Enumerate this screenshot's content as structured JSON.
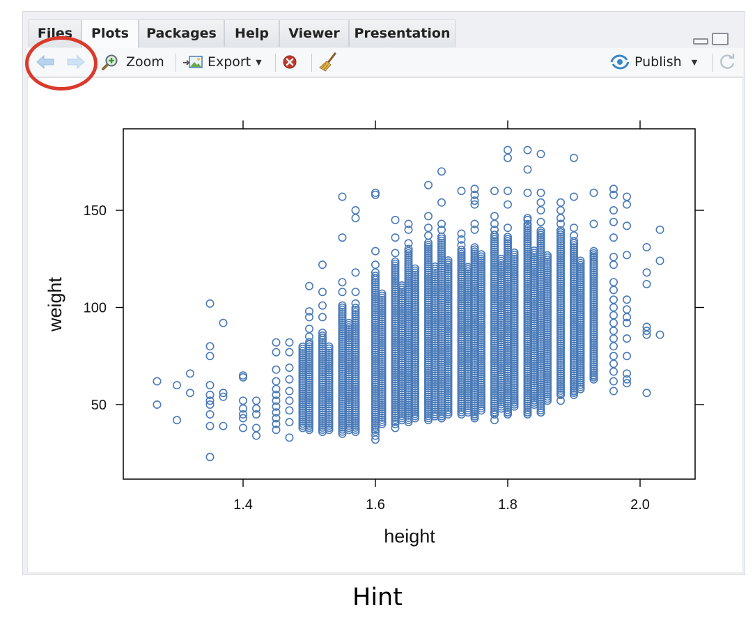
{
  "tabs": [
    {
      "label": "Files",
      "active": false
    },
    {
      "label": "Plots",
      "active": true
    },
    {
      "label": "Packages",
      "active": false
    },
    {
      "label": "Help",
      "active": false
    },
    {
      "label": "Viewer",
      "active": false
    },
    {
      "label": "Presentation",
      "active": false
    }
  ],
  "toolbar": {
    "back_icon": "left-arrow-icon",
    "forward_icon": "right-arrow-icon",
    "zoom_label": "Zoom",
    "export_label": "Export",
    "remove_icon": "remove-plot-icon",
    "clear_icon": "broom-icon",
    "publish_label": "Publish",
    "refresh_icon": "refresh-icon"
  },
  "colors": {
    "point": "#4a7ab7",
    "annotation": "#d93a2b",
    "tab_bg": "#e6e9ed"
  },
  "caption": "Hint",
  "chart_data": {
    "type": "scatter",
    "xlabel": "height",
    "ylabel": "weight",
    "xlim": [
      1.22,
      2.08
    ],
    "ylim": [
      20,
      190
    ],
    "xticks": [
      1.4,
      1.6,
      1.8,
      2.0
    ],
    "xtick_labels": [
      "1.4",
      "1.6",
      "1.8",
      "2.0"
    ],
    "yticks": [
      50,
      100,
      150
    ],
    "ytick_labels": [
      "50",
      "100",
      "150"
    ],
    "grid": false,
    "marker": "open-circle",
    "points": [
      [
        1.27,
        62
      ],
      [
        1.27,
        50
      ],
      [
        1.3,
        60
      ],
      [
        1.3,
        42
      ],
      [
        1.32,
        66
      ],
      [
        1.32,
        56
      ],
      [
        1.35,
        102
      ],
      [
        1.35,
        80
      ],
      [
        1.35,
        75
      ],
      [
        1.35,
        60
      ],
      [
        1.35,
        55
      ],
      [
        1.35,
        52
      ],
      [
        1.35,
        50
      ],
      [
        1.35,
        45
      ],
      [
        1.35,
        39
      ],
      [
        1.35,
        23
      ],
      [
        1.37,
        92
      ],
      [
        1.37,
        56
      ],
      [
        1.37,
        54
      ],
      [
        1.37,
        39
      ],
      [
        1.4,
        65
      ],
      [
        1.4,
        64
      ],
      [
        1.4,
        52
      ],
      [
        1.4,
        48
      ],
      [
        1.4,
        45
      ],
      [
        1.4,
        43
      ],
      [
        1.4,
        38
      ],
      [
        1.42,
        52
      ],
      [
        1.42,
        48
      ],
      [
        1.42,
        45
      ],
      [
        1.42,
        38
      ],
      [
        1.42,
        34
      ],
      [
        1.45,
        82
      ],
      [
        1.45,
        77
      ],
      [
        1.45,
        68
      ],
      [
        1.45,
        62
      ],
      [
        1.45,
        58
      ],
      [
        1.45,
        55
      ],
      [
        1.45,
        52
      ],
      [
        1.45,
        49
      ],
      [
        1.45,
        46
      ],
      [
        1.45,
        43
      ],
      [
        1.45,
        40
      ],
      [
        1.45,
        37
      ],
      [
        1.47,
        82
      ],
      [
        1.47,
        77
      ],
      [
        1.47,
        69
      ],
      [
        1.47,
        63
      ],
      [
        1.47,
        57
      ],
      [
        1.47,
        52
      ],
      [
        1.47,
        47
      ],
      [
        1.47,
        41
      ],
      [
        1.47,
        33
      ],
      [
        1.5,
        111
      ],
      [
        1.5,
        98
      ],
      [
        1.5,
        95
      ],
      [
        1.5,
        89
      ],
      [
        1.5,
        85
      ],
      [
        1.52,
        122
      ],
      [
        1.52,
        108
      ],
      [
        1.52,
        101
      ],
      [
        1.52,
        95
      ],
      [
        1.52,
        87
      ],
      [
        1.55,
        157
      ],
      [
        1.55,
        136
      ],
      [
        1.55,
        113
      ],
      [
        1.55,
        108
      ],
      [
        1.55,
        101
      ],
      [
        1.57,
        150
      ],
      [
        1.57,
        146
      ],
      [
        1.57,
        118
      ],
      [
        1.57,
        108
      ],
      [
        1.57,
        102
      ],
      [
        1.6,
        159
      ],
      [
        1.6,
        158
      ],
      [
        1.6,
        129
      ],
      [
        1.6,
        122
      ],
      [
        1.6,
        118
      ],
      [
        1.6,
        34
      ],
      [
        1.6,
        32
      ],
      [
        1.63,
        145
      ],
      [
        1.63,
        136
      ],
      [
        1.63,
        128
      ],
      [
        1.63,
        38
      ],
      [
        1.65,
        143
      ],
      [
        1.65,
        140
      ],
      [
        1.65,
        133
      ],
      [
        1.68,
        163
      ],
      [
        1.68,
        147
      ],
      [
        1.68,
        141
      ],
      [
        1.68,
        137
      ],
      [
        1.7,
        170
      ],
      [
        1.7,
        154
      ],
      [
        1.7,
        143
      ],
      [
        1.7,
        140
      ],
      [
        1.7,
        43
      ],
      [
        1.73,
        160
      ],
      [
        1.73,
        138
      ],
      [
        1.73,
        135
      ],
      [
        1.73,
        132
      ],
      [
        1.75,
        161
      ],
      [
        1.75,
        158
      ],
      [
        1.75,
        155
      ],
      [
        1.75,
        153
      ],
      [
        1.75,
        143
      ],
      [
        1.75,
        140
      ],
      [
        1.75,
        43
      ],
      [
        1.78,
        160
      ],
      [
        1.78,
        147
      ],
      [
        1.78,
        143
      ],
      [
        1.78,
        140
      ],
      [
        1.78,
        45
      ],
      [
        1.78,
        42
      ],
      [
        1.8,
        181
      ],
      [
        1.8,
        177
      ],
      [
        1.8,
        160
      ],
      [
        1.8,
        153
      ],
      [
        1.8,
        141
      ],
      [
        1.8,
        46
      ],
      [
        1.83,
        181
      ],
      [
        1.83,
        171
      ],
      [
        1.83,
        159
      ],
      [
        1.83,
        146
      ],
      [
        1.83,
        145
      ],
      [
        1.83,
        46
      ],
      [
        1.85,
        179
      ],
      [
        1.85,
        159
      ],
      [
        1.85,
        154
      ],
      [
        1.85,
        150
      ],
      [
        1.85,
        144
      ],
      [
        1.85,
        46
      ],
      [
        1.88,
        154
      ],
      [
        1.88,
        150
      ],
      [
        1.88,
        146
      ],
      [
        1.88,
        143
      ],
      [
        1.88,
        55
      ],
      [
        1.88,
        52
      ],
      [
        1.9,
        177
      ],
      [
        1.9,
        157
      ],
      [
        1.9,
        141
      ],
      [
        1.9,
        137
      ],
      [
        1.9,
        57
      ],
      [
        1.93,
        159
      ],
      [
        1.93,
        143
      ],
      [
        1.93,
        129
      ],
      [
        1.93,
        126
      ],
      [
        1.93,
        65
      ],
      [
        1.96,
        161
      ],
      [
        1.96,
        158
      ],
      [
        1.96,
        150
      ],
      [
        1.96,
        144
      ],
      [
        1.96,
        136
      ],
      [
        1.96,
        126
      ],
      [
        1.96,
        122
      ],
      [
        1.96,
        113
      ],
      [
        1.96,
        109
      ],
      [
        1.96,
        104
      ],
      [
        1.96,
        100
      ],
      [
        1.96,
        96
      ],
      [
        1.96,
        92
      ],
      [
        1.96,
        88
      ],
      [
        1.96,
        84
      ],
      [
        1.96,
        80
      ],
      [
        1.96,
        75
      ],
      [
        1.96,
        71
      ],
      [
        1.96,
        67
      ],
      [
        1.96,
        62
      ],
      [
        1.96,
        57
      ],
      [
        1.98,
        157
      ],
      [
        1.98,
        153
      ],
      [
        1.98,
        142
      ],
      [
        1.98,
        127
      ],
      [
        1.98,
        104
      ],
      [
        1.98,
        99
      ],
      [
        1.98,
        95
      ],
      [
        1.98,
        92
      ],
      [
        1.98,
        84
      ],
      [
        1.98,
        75
      ],
      [
        1.98,
        66
      ],
      [
        1.98,
        63
      ],
      [
        1.98,
        61
      ],
      [
        2.01,
        131
      ],
      [
        2.01,
        118
      ],
      [
        2.01,
        112
      ],
      [
        2.01,
        90
      ],
      [
        2.01,
        88
      ],
      [
        2.01,
        86
      ],
      [
        2.01,
        56
      ],
      [
        2.03,
        140
      ],
      [
        2.03,
        124
      ],
      [
        2.03,
        86
      ]
    ],
    "dense_columns": [
      {
        "x": 1.49,
        "y_range": [
          38,
          80
        ]
      },
      {
        "x": 1.5,
        "y_range": [
          37,
          83
        ]
      },
      {
        "x": 1.52,
        "y_range": [
          36,
          86
        ]
      },
      {
        "x": 1.53,
        "y_range": [
          37,
          80
        ]
      },
      {
        "x": 1.55,
        "y_range": [
          35,
          100
        ]
      },
      {
        "x": 1.56,
        "y_range": [
          37,
          93
        ]
      },
      {
        "x": 1.57,
        "y_range": [
          36,
          100
        ]
      },
      {
        "x": 1.6,
        "y_range": [
          36,
          117
        ]
      },
      {
        "x": 1.61,
        "y_range": [
          40,
          108
        ]
      },
      {
        "x": 1.63,
        "y_range": [
          40,
          124
        ]
      },
      {
        "x": 1.64,
        "y_range": [
          42,
          112
        ]
      },
      {
        "x": 1.65,
        "y_range": [
          41,
          131
        ]
      },
      {
        "x": 1.66,
        "y_range": [
          43,
          120
        ]
      },
      {
        "x": 1.68,
        "y_range": [
          42,
          134
        ]
      },
      {
        "x": 1.69,
        "y_range": [
          44,
          122
        ]
      },
      {
        "x": 1.7,
        "y_range": [
          43,
          137
        ]
      },
      {
        "x": 1.71,
        "y_range": [
          45,
          125
        ]
      },
      {
        "x": 1.73,
        "y_range": [
          45,
          130
        ]
      },
      {
        "x": 1.74,
        "y_range": [
          46,
          121
        ]
      },
      {
        "x": 1.75,
        "y_range": [
          44,
          131
        ]
      },
      {
        "x": 1.76,
        "y_range": [
          47,
          128
        ]
      },
      {
        "x": 1.78,
        "y_range": [
          45,
          138
        ]
      },
      {
        "x": 1.79,
        "y_range": [
          48,
          126
        ]
      },
      {
        "x": 1.8,
        "y_range": [
          45,
          137
        ]
      },
      {
        "x": 1.81,
        "y_range": [
          49,
          129
        ]
      },
      {
        "x": 1.83,
        "y_range": [
          45,
          143
        ]
      },
      {
        "x": 1.84,
        "y_range": [
          50,
          130
        ]
      },
      {
        "x": 1.85,
        "y_range": [
          46,
          140
        ]
      },
      {
        "x": 1.86,
        "y_range": [
          52,
          127
        ]
      },
      {
        "x": 1.88,
        "y_range": [
          55,
          140
        ]
      },
      {
        "x": 1.9,
        "y_range": [
          55,
          135
        ]
      },
      {
        "x": 1.91,
        "y_range": [
          58,
          125
        ]
      },
      {
        "x": 1.93,
        "y_range": [
          63,
          128
        ]
      }
    ]
  }
}
